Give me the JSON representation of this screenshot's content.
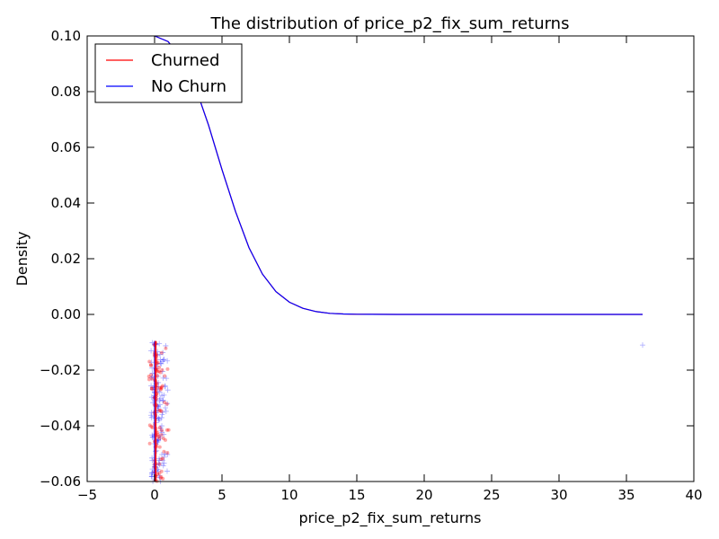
{
  "chart_data": {
    "type": "line",
    "title": "The distribution of price_p2_fix_sum_returns",
    "xlabel": "price_p2_fix_sum_returns",
    "ylabel": "Density",
    "xlim": [
      -5,
      40
    ],
    "ylim": [
      -0.06,
      0.1
    ],
    "x_ticks": [
      -5,
      0,
      5,
      10,
      15,
      20,
      25,
      30,
      35,
      40
    ],
    "x_tick_labels": [
      "−5",
      "0",
      "5",
      "10",
      "15",
      "20",
      "25",
      "30",
      "35",
      "40"
    ],
    "y_ticks": [
      -0.06,
      -0.04,
      -0.02,
      0.0,
      0.02,
      0.04,
      0.06,
      0.08,
      0.1
    ],
    "y_tick_labels": [
      "−0.06",
      "−0.04",
      "−0.02",
      "0.00",
      "0.02",
      "0.04",
      "0.06",
      "0.08",
      "0.10"
    ],
    "grid": false,
    "legend_position": "top-left",
    "series": [
      {
        "name": "Churned",
        "color": "#ff0000",
        "kind": "density-line",
        "x": [
          0,
          1,
          2,
          3,
          4,
          5,
          6,
          7,
          8,
          9,
          10,
          11,
          12,
          13,
          14,
          15,
          16,
          18,
          20,
          25,
          30,
          36.2
        ],
        "y": [
          0.1,
          0.098,
          0.092,
          0.082,
          0.068,
          0.052,
          0.037,
          0.024,
          0.0145,
          0.0082,
          0.0044,
          0.0022,
          0.001,
          0.0004,
          0.00015,
          5e-05,
          2e-05,
          0.0,
          0.0,
          0.0,
          0.0,
          0.0
        ]
      },
      {
        "name": "No Churn",
        "color": "#0000ff",
        "kind": "density-line",
        "x": [
          0,
          1,
          2,
          3,
          4,
          5,
          6,
          7,
          8,
          9,
          10,
          11,
          12,
          13,
          14,
          15,
          16,
          18,
          20,
          25,
          30,
          36.2
        ],
        "y": [
          0.1,
          0.098,
          0.092,
          0.082,
          0.068,
          0.052,
          0.037,
          0.024,
          0.0145,
          0.0082,
          0.0044,
          0.0022,
          0.001,
          0.0004,
          0.00015,
          5e-05,
          2e-05,
          0.0,
          0.0,
          0.0,
          0.0,
          0.0
        ]
      }
    ],
    "rug": {
      "y_range": [
        -0.06,
        -0.01
      ],
      "churned": {
        "color": "#ff0000",
        "marker": "dot",
        "x": [
          -0.3,
          0.0,
          0.1,
          0.2,
          0.4,
          0.6,
          0.8
        ]
      },
      "no_churn": {
        "color": "#0000ff",
        "marker": "plus",
        "x": [
          -0.2,
          0.0,
          0.1,
          0.2,
          0.3,
          0.5,
          0.7,
          36.2
        ]
      },
      "outlier": {
        "x": 36.2,
        "y": -0.011
      }
    }
  }
}
